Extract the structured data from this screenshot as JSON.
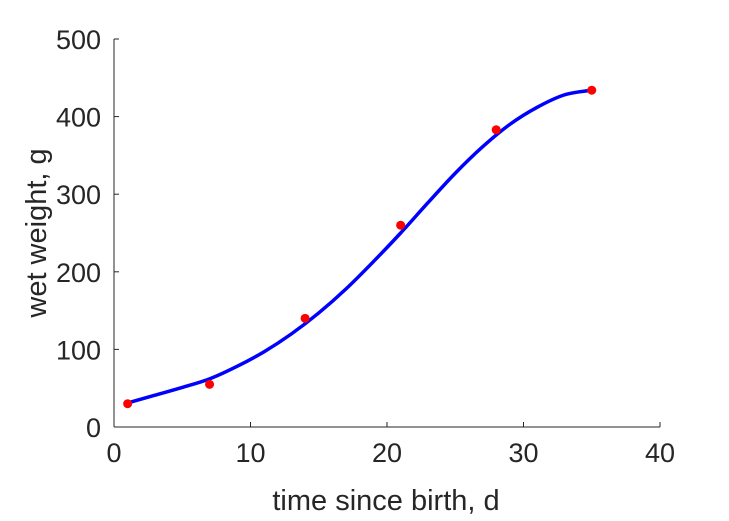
{
  "chart_data": {
    "type": "scatter",
    "xlabel": "time since birth, d",
    "ylabel": "wet weight, g",
    "xlim": [
      0,
      40
    ],
    "ylim": [
      0,
      500
    ],
    "xticks": [
      "0",
      "10",
      "20",
      "30",
      "40"
    ],
    "yticks": [
      "0",
      "100",
      "200",
      "300",
      "400",
      "500"
    ],
    "grid": false,
    "series": [
      {
        "kind": "points",
        "color": "#ff0000",
        "x": [
          1,
          7,
          14,
          21,
          28,
          35
        ],
        "y": [
          30,
          55,
          140,
          260,
          383,
          434
        ]
      },
      {
        "kind": "line",
        "color": "#0000ff",
        "x": [
          1,
          3,
          5,
          7,
          9,
          11,
          13,
          15,
          17,
          19,
          21,
          23,
          25,
          27,
          29,
          31,
          33,
          35
        ],
        "y": [
          31,
          41,
          51,
          62,
          78,
          97,
          120,
          147,
          178,
          213,
          250,
          289,
          327,
          361,
          390,
          412,
          428,
          434
        ]
      }
    ]
  }
}
